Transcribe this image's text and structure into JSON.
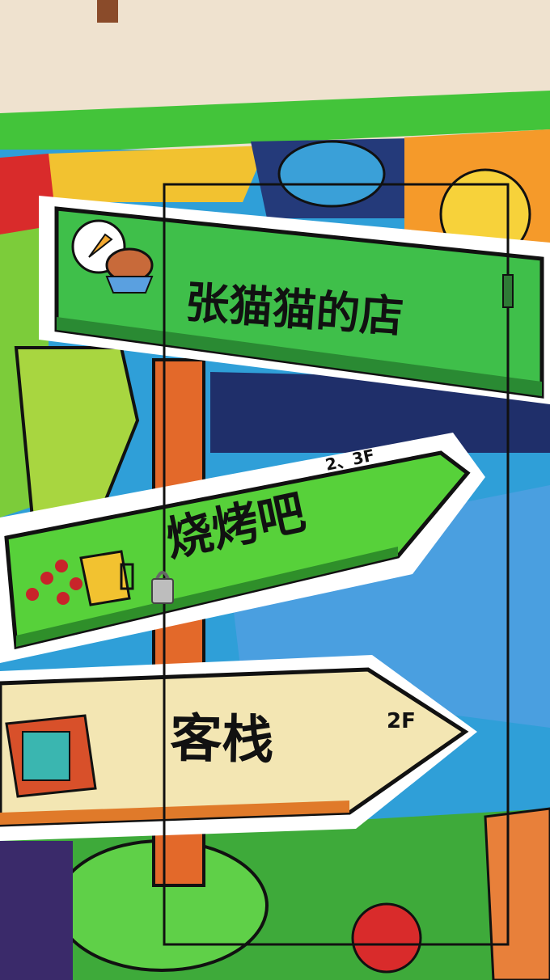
{
  "signs": {
    "shop": {
      "label": "张猫猫的店",
      "color": "#3fbf4a"
    },
    "bbq": {
      "label": "烧烤吧",
      "floor": "2、3F",
      "color": "#57d13a"
    },
    "inn": {
      "label": "客栈",
      "floor": "2F",
      "color": "#f3e6b3"
    }
  },
  "colors": {
    "wall": "#efe2cf",
    "ledge": "#43c43a",
    "outline": "#111111",
    "post": "#e3692a",
    "sky_blue": "#3aa0d8"
  },
  "icons": [
    "food-plate-icon",
    "skewers-beer-icon",
    "building-icon",
    "padlock-icon"
  ]
}
